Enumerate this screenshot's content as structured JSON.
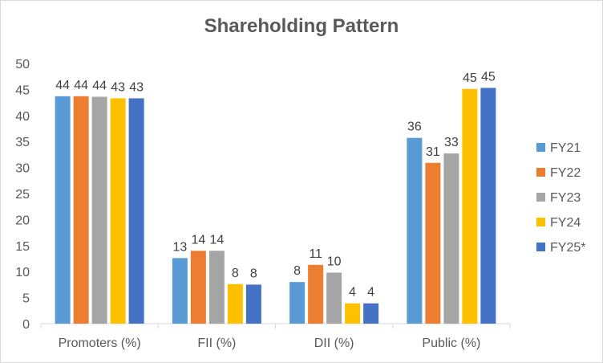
{
  "chart_data": {
    "type": "bar",
    "title": "Shareholding Pattern",
    "xlabel": "",
    "ylabel": "",
    "categories": [
      "Promoters (%)",
      "FII (%)",
      "DII (%)",
      "Public (%)"
    ],
    "ylim": [
      0,
      50
    ],
    "yticks": [
      0,
      5,
      10,
      15,
      20,
      25,
      30,
      35,
      40,
      45,
      50
    ],
    "grid": false,
    "legend_position": "right",
    "series": [
      {
        "name": "FY21",
        "color": "#5B9BD5",
        "values": [
          43.7,
          12.6,
          8.0,
          35.7
        ],
        "labels": [
          "44",
          "13",
          "8",
          "36"
        ]
      },
      {
        "name": "FY22",
        "color": "#ED7D31",
        "values": [
          43.7,
          14.0,
          11.3,
          30.9
        ],
        "labels": [
          "44",
          "14",
          "11",
          "31"
        ]
      },
      {
        "name": "FY23",
        "color": "#A5A5A5",
        "values": [
          43.6,
          14.0,
          9.8,
          32.7
        ],
        "labels": [
          "44",
          "14",
          "10",
          "33"
        ]
      },
      {
        "name": "FY24",
        "color": "#FFC000",
        "values": [
          43.3,
          7.6,
          3.9,
          45.1
        ],
        "labels": [
          "43",
          "8",
          "4",
          "45"
        ]
      },
      {
        "name": "FY25*",
        "color": "#4472C4",
        "values": [
          43.3,
          7.5,
          3.9,
          45.3
        ],
        "labels": [
          "43",
          "8",
          "4",
          "45"
        ]
      }
    ]
  }
}
